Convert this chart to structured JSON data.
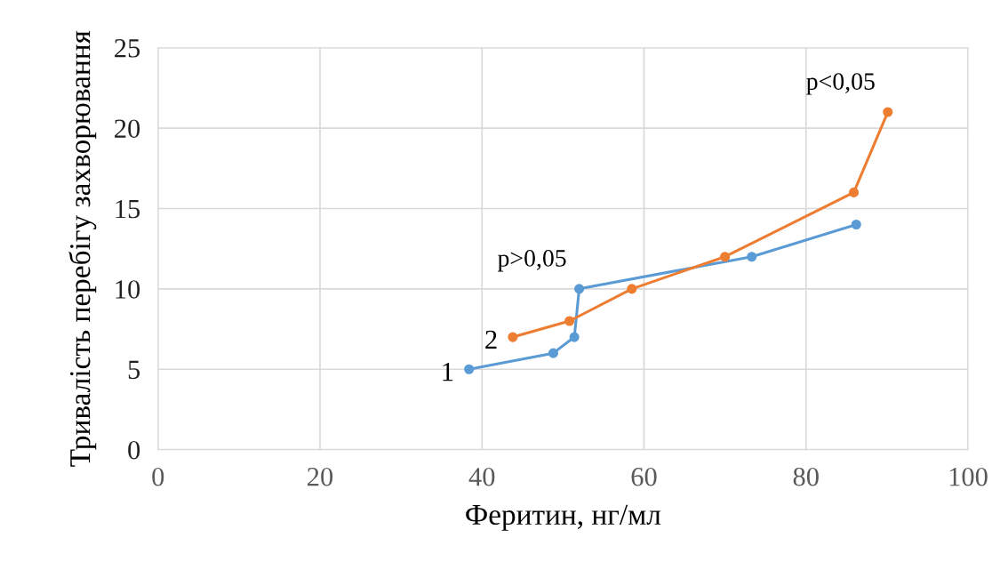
{
  "chart_data": {
    "type": "line",
    "xlabel": "Феритин, нг/мл",
    "ylabel": "Тривалість перебігу захворювання",
    "xlim": [
      0,
      100
    ],
    "xticks": [
      0,
      20,
      40,
      60,
      80,
      100
    ],
    "ylim": [
      0,
      25
    ],
    "yticks": [
      0,
      5,
      10,
      15,
      20,
      25
    ],
    "grid": true,
    "marker": "circle",
    "line_style": "solid",
    "series": [
      {
        "name": "1",
        "color": "#5b9bd5",
        "x": [
          38.4,
          48.8,
          51.4,
          52,
          73.3,
          86.2
        ],
        "values": [
          5,
          6,
          7,
          10,
          12,
          14
        ]
      },
      {
        "name": "2",
        "color": "#ed7d31",
        "x": [
          43.8,
          50.8,
          58.5,
          70,
          85.9,
          90.1
        ],
        "values": [
          7,
          8,
          10,
          12,
          16,
          21
        ]
      }
    ],
    "annotations": [
      {
        "text": "p>0,05",
        "x": 52,
        "y": 10
      },
      {
        "text": "p<0,05",
        "x": 90.1,
        "y": 21
      }
    ]
  }
}
